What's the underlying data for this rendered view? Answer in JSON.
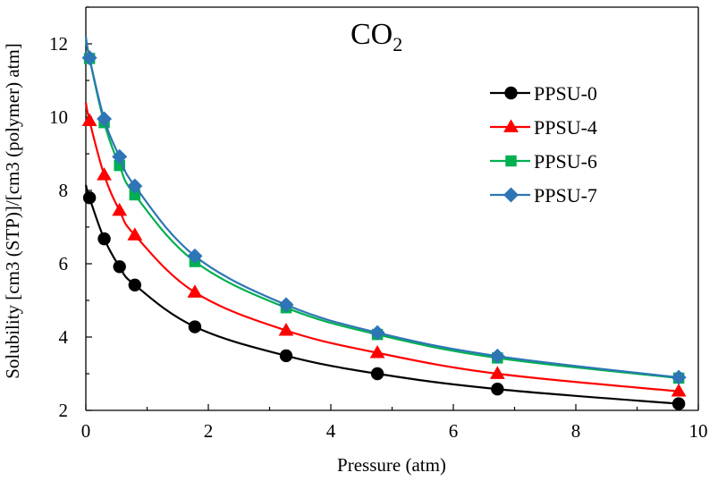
{
  "chart_data": {
    "type": "line",
    "title": "CO",
    "title_subscript": "2",
    "xlabel": "Pressure (atm)",
    "ylabel": "Solubility [cm3 (STP)]/[cm3 (polymer) atm]",
    "xlim": [
      0,
      10
    ],
    "ylim": [
      2,
      13
    ],
    "xticks": [
      0,
      2,
      4,
      6,
      8,
      10
    ],
    "yticks": [
      2,
      4,
      6,
      8,
      10,
      12
    ],
    "grid": false,
    "legend_position": "top-right",
    "series": [
      {
        "name": "PPSU-0",
        "color": "#000000",
        "marker": "circle",
        "x": [
          0.06,
          0.3,
          0.55,
          0.8,
          1.78,
          3.27,
          4.76,
          6.72,
          9.68
        ],
        "y": [
          7.8,
          6.68,
          5.92,
          5.42,
          4.28,
          3.49,
          3.0,
          2.58,
          2.18
        ],
        "curve_start": 8.15
      },
      {
        "name": "PPSU-4",
        "color": "#ff0000",
        "marker": "triangle",
        "x": [
          0.06,
          0.3,
          0.55,
          0.8,
          1.78,
          3.27,
          4.76,
          6.72,
          9.68
        ],
        "y": [
          9.9,
          8.42,
          7.45,
          6.78,
          5.22,
          4.18,
          3.57,
          3.0,
          2.52
        ],
        "curve_start": 10.4
      },
      {
        "name": "PPSU-6",
        "color": "#00b050",
        "marker": "square",
        "x": [
          0.06,
          0.3,
          0.55,
          0.8,
          1.78,
          3.27,
          4.76,
          6.72,
          9.68
        ],
        "y": [
          11.6,
          9.85,
          8.68,
          7.88,
          6.06,
          4.8,
          4.07,
          3.43,
          2.88
        ],
        "curve_start": 12.1
      },
      {
        "name": "PPSU-7",
        "color": "#2e75b6",
        "marker": "diamond",
        "x": [
          0.06,
          0.3,
          0.55,
          0.8,
          1.78,
          3.27,
          4.76,
          6.72,
          9.68
        ],
        "y": [
          11.62,
          9.95,
          8.92,
          8.12,
          6.21,
          4.88,
          4.12,
          3.48,
          2.9
        ],
        "curve_start": 12.2
      }
    ]
  }
}
